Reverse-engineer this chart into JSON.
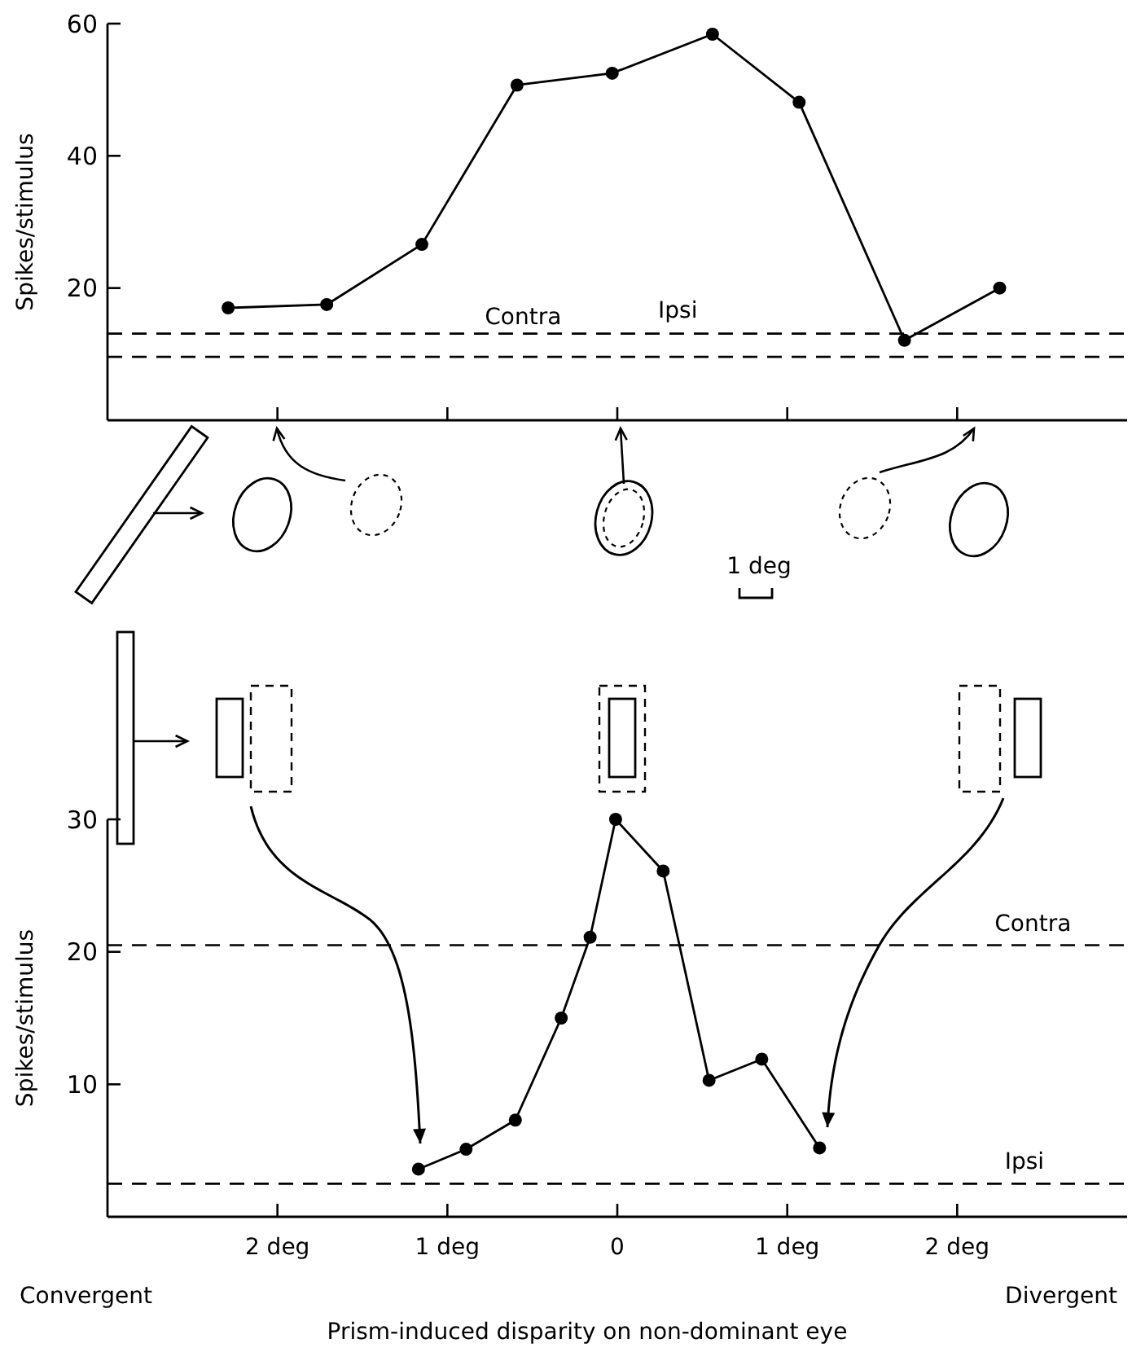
{
  "chart_data": [
    {
      "type": "line",
      "ylabel": "Spikes/stimulus",
      "xlim": [
        -3,
        3
      ],
      "ylim": [
        0,
        60
      ],
      "yticks": [
        20,
        40,
        60
      ],
      "xticks": [
        {
          "value": -2,
          "label": null
        },
        {
          "value": -1,
          "label": null
        },
        {
          "value": 0,
          "label": null
        },
        {
          "value": 1,
          "label": null
        },
        {
          "value": 2,
          "label": null
        }
      ],
      "tick_labels": "y",
      "marker": "circle",
      "line_style": "solid",
      "grid": false,
      "series": [
        {
          "color": "#000000",
          "x": [
            -2.29,
            -1.71,
            -1.15,
            -0.59,
            -0.03,
            0.56,
            1.07,
            1.69,
            2.25
          ],
          "values": [
            17,
            17.5,
            26.6,
            50.7,
            52.5,
            58.4,
            48.1,
            12.1,
            20
          ]
        }
      ],
      "ref_lines": [
        {
          "axis": "y",
          "value": 13.1,
          "label": "Contra",
          "line_style": "dashed",
          "color": "#000000"
        },
        {
          "axis": "y",
          "value": 9.6,
          "label": "Ipsi",
          "line_style": "dashed",
          "color": "#000000"
        }
      ],
      "annotations": [
        "1 deg"
      ]
    },
    {
      "type": "line",
      "ylabel": "Spikes/stimulus",
      "xlabel": "Prism-induced disparity on non-dominant eye",
      "xlim": [
        -3,
        3
      ],
      "ylim": [
        0,
        30
      ],
      "yticks": [
        10,
        20,
        30
      ],
      "xticks": [
        {
          "value": -2,
          "label": "2 deg"
        },
        {
          "value": -1,
          "label": "1 deg"
        },
        0,
        {
          "value": 1,
          "label": "1 deg"
        },
        {
          "value": 2,
          "label": "2 deg"
        }
      ],
      "marker": "circle",
      "line_style": "solid",
      "grid": false,
      "series": [
        {
          "color": "#000000",
          "x": [
            -1.17,
            -0.89,
            -0.6,
            -0.33,
            -0.16,
            -0.01,
            0.27,
            0.54,
            0.85,
            1.19
          ],
          "values": [
            3.6,
            5.1,
            7.3,
            15,
            21.1,
            30,
            26.1,
            10.3,
            11.9,
            5.2
          ]
        }
      ],
      "ref_lines": [
        {
          "axis": "y",
          "value": 20.5,
          "label": "Contra",
          "line_style": "dashed",
          "color": "#000000"
        },
        {
          "axis": "y",
          "value": 2.5,
          "label": "Ipsi",
          "line_style": "dashed",
          "color": "#000000"
        }
      ],
      "annotations": [
        "Convergent",
        "Divergent"
      ]
    }
  ]
}
